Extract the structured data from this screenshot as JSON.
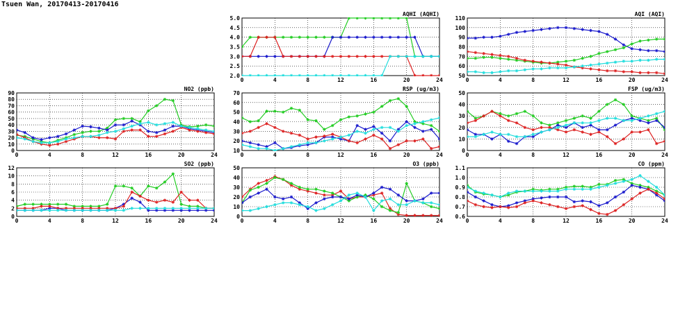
{
  "page": {
    "title": "Tsuen Wan, 20170413-20170416"
  },
  "colors": {
    "green": "#22cc22",
    "blue": "#1a1acc",
    "red": "#dd2222",
    "cyan": "#22dddd"
  },
  "chart_data": [
    {
      "type": "line",
      "title": "AQHI (AQHI)",
      "xlim": [
        0,
        24
      ],
      "ylim": [
        2.0,
        5.0
      ],
      "xticks": [
        "0",
        "4",
        "8",
        "12",
        "16",
        "20",
        "24"
      ],
      "yticks": [
        "2.0",
        "2.5",
        "3.0",
        "3.5",
        "4.0",
        "4.5",
        "5.0"
      ],
      "grid": true,
      "series": [
        {
          "color": "green",
          "values": [
            3.5,
            4,
            4,
            4,
            4,
            4,
            4,
            4,
            4,
            4,
            4,
            4,
            4,
            5,
            5,
            5,
            5,
            5,
            5,
            5,
            5,
            3,
            3,
            3,
            3
          ]
        },
        {
          "color": "blue",
          "values": [
            3,
            3,
            3,
            3,
            3,
            3,
            3,
            3,
            3,
            3,
            3,
            4,
            4,
            4,
            4,
            4,
            4,
            4,
            4,
            4,
            4,
            4,
            3,
            3,
            3
          ]
        },
        {
          "color": "red",
          "values": [
            3,
            3,
            4,
            4,
            4,
            3,
            3,
            3,
            3,
            3,
            3,
            3,
            3,
            3,
            3,
            3,
            3,
            3,
            3,
            3,
            3,
            2,
            2,
            2,
            2
          ]
        },
        {
          "color": "cyan",
          "values": [
            2,
            2,
            2,
            2,
            2,
            2,
            2,
            2,
            2,
            2,
            2,
            2,
            2,
            2,
            2,
            2,
            2,
            2,
            3,
            3,
            3,
            3,
            3,
            3,
            3
          ]
        }
      ]
    },
    {
      "type": "line",
      "title": "AQI (AQI)",
      "xlim": [
        0,
        24
      ],
      "ylim": [
        50,
        110
      ],
      "xticks": [
        "0",
        "4",
        "8",
        "12",
        "16",
        "20",
        "24"
      ],
      "yticks": [
        "50",
        "60",
        "70",
        "80",
        "90",
        "100",
        "110"
      ],
      "grid": true,
      "series": [
        {
          "color": "blue",
          "values": [
            89,
            89,
            90,
            90,
            91,
            93,
            95,
            96,
            97,
            98,
            99,
            100,
            100,
            99,
            98,
            97,
            96,
            93,
            88,
            82,
            78,
            77,
            76,
            76,
            75
          ]
        },
        {
          "color": "green",
          "values": [
            68,
            68,
            69,
            69,
            68,
            67,
            66,
            65,
            64,
            63,
            63,
            64,
            65,
            66,
            68,
            70,
            73,
            75,
            77,
            79,
            83,
            86,
            87,
            88,
            88
          ]
        },
        {
          "color": "red",
          "values": [
            75,
            74,
            73,
            72,
            71,
            70,
            68,
            66,
            65,
            64,
            63,
            62,
            61,
            59,
            58,
            57,
            56,
            55,
            55,
            54,
            54,
            53,
            53,
            53,
            52
          ]
        },
        {
          "color": "cyan",
          "values": [
            54,
            54,
            53,
            53,
            54,
            55,
            55,
            56,
            57,
            57,
            58,
            58,
            58,
            59,
            60,
            61,
            62,
            63,
            64,
            65,
            65,
            66,
            66,
            67,
            67
          ]
        }
      ]
    },
    {
      "type": "line",
      "title": "NO2 (ppb)",
      "xlim": [
        0,
        24
      ],
      "ylim": [
        0,
        90
      ],
      "xticks": [
        "0",
        "4",
        "8",
        "12",
        "16",
        "20",
        "24"
      ],
      "yticks": [
        "0",
        "10",
        "20",
        "30",
        "40",
        "50",
        "60",
        "70",
        "80",
        "90"
      ],
      "grid": true,
      "series": [
        {
          "color": "green",
          "values": [
            24,
            22,
            18,
            14,
            12,
            16,
            20,
            25,
            28,
            30,
            30,
            35,
            48,
            50,
            50,
            45,
            62,
            70,
            80,
            78,
            40,
            37,
            38,
            40,
            38
          ]
        },
        {
          "color": "blue",
          "values": [
            32,
            28,
            20,
            17,
            20,
            22,
            26,
            32,
            38,
            37,
            35,
            32,
            40,
            40,
            46,
            40,
            30,
            28,
            32,
            38,
            38,
            34,
            32,
            30,
            28
          ]
        },
        {
          "color": "red",
          "values": [
            25,
            20,
            14,
            10,
            8,
            10,
            14,
            18,
            22,
            22,
            20,
            20,
            18,
            30,
            32,
            32,
            22,
            22,
            26,
            30,
            36,
            32,
            30,
            28,
            26
          ]
        },
        {
          "color": "cyan",
          "values": [
            20,
            18,
            14,
            12,
            12,
            14,
            18,
            20,
            22,
            22,
            24,
            28,
            30,
            34,
            38,
            42,
            44,
            40,
            42,
            44,
            38,
            36,
            34,
            32,
            30
          ]
        }
      ]
    },
    {
      "type": "line",
      "title": "RSP (ug/m3)",
      "xlim": [
        0,
        24
      ],
      "ylim": [
        10,
        70
      ],
      "xticks": [
        "0",
        "4",
        "8",
        "12",
        "16",
        "20",
        "24"
      ],
      "yticks": [
        "10",
        "20",
        "30",
        "40",
        "50",
        "60",
        "70"
      ],
      "grid": true,
      "series": [
        {
          "color": "green",
          "values": [
            44,
            40,
            41,
            51,
            51,
            50,
            54,
            52,
            42,
            41,
            32,
            36,
            42,
            45,
            46,
            48,
            50,
            56,
            62,
            64,
            56,
            40,
            38,
            36,
            30
          ]
        },
        {
          "color": "blue",
          "values": [
            20,
            18,
            16,
            14,
            18,
            12,
            13,
            15,
            16,
            18,
            24,
            24,
            22,
            20,
            36,
            32,
            35,
            28,
            20,
            32,
            40,
            34,
            30,
            32,
            22
          ]
        },
        {
          "color": "red",
          "values": [
            28,
            30,
            34,
            38,
            34,
            30,
            28,
            26,
            22,
            24,
            25,
            27,
            24,
            20,
            18,
            22,
            26,
            22,
            12,
            16,
            20,
            20,
            22,
            12,
            14
          ]
        },
        {
          "color": "cyan",
          "values": [
            16,
            14,
            12,
            12,
            10,
            12,
            14,
            16,
            18,
            18,
            20,
            22,
            24,
            26,
            30,
            28,
            32,
            34,
            34,
            30,
            36,
            38,
            40,
            42,
            44
          ]
        }
      ]
    },
    {
      "type": "line",
      "title": "FSP (ug/m3)",
      "xlim": [
        0,
        24
      ],
      "ylim": [
        0,
        50
      ],
      "xticks": [
        "0",
        "4",
        "8",
        "12",
        "16",
        "20",
        "24"
      ],
      "yticks": [
        "0",
        "10",
        "20",
        "30",
        "40",
        "50"
      ],
      "grid": true,
      "series": [
        {
          "color": "green",
          "values": [
            34,
            28,
            30,
            34,
            32,
            30,
            32,
            34,
            30,
            24,
            22,
            24,
            26,
            28,
            30,
            28,
            34,
            40,
            44,
            40,
            30,
            28,
            26,
            28,
            18
          ]
        },
        {
          "color": "blue",
          "values": [
            18,
            14,
            14,
            10,
            14,
            8,
            6,
            12,
            12,
            16,
            18,
            22,
            20,
            24,
            20,
            22,
            18,
            18,
            22,
            26,
            28,
            26,
            24,
            26,
            20
          ]
        },
        {
          "color": "red",
          "values": [
            24,
            26,
            30,
            34,
            30,
            26,
            24,
            20,
            18,
            20,
            20,
            18,
            16,
            18,
            16,
            14,
            16,
            12,
            6,
            10,
            16,
            16,
            18,
            6,
            8
          ]
        },
        {
          "color": "cyan",
          "values": [
            12,
            12,
            14,
            16,
            14,
            14,
            12,
            12,
            14,
            16,
            18,
            20,
            22,
            24,
            24,
            24,
            26,
            28,
            28,
            26,
            26,
            28,
            30,
            32,
            34
          ]
        }
      ]
    },
    {
      "type": "line",
      "title": "SO2 (ppb)",
      "xlim": [
        0,
        24
      ],
      "ylim": [
        0,
        12
      ],
      "xticks": [
        "0",
        "4",
        "8",
        "12",
        "16",
        "20",
        "24"
      ],
      "yticks": [
        "0",
        "2",
        "4",
        "6",
        "8",
        "10",
        "12"
      ],
      "grid": true,
      "series": [
        {
          "color": "green",
          "values": [
            2.5,
            3,
            3,
            3,
            3,
            3,
            3,
            2.5,
            2.5,
            2.5,
            2.5,
            3,
            7.5,
            7.5,
            7,
            5,
            7.5,
            7,
            8.5,
            10.5,
            3,
            2.5,
            2.5,
            2,
            2
          ]
        },
        {
          "color": "blue",
          "values": [
            1.5,
            1.5,
            1.5,
            1.5,
            2,
            2,
            1.5,
            1.5,
            1.5,
            1.5,
            1.5,
            1.5,
            2,
            3,
            4.5,
            3.5,
            1.5,
            1.5,
            1.5,
            1.5,
            1.5,
            1.5,
            1.5,
            1.5,
            1.5
          ]
        },
        {
          "color": "red",
          "values": [
            2,
            2,
            2,
            2.5,
            2.5,
            2,
            2,
            2,
            2,
            2,
            2,
            2,
            2,
            2.5,
            6,
            5,
            4,
            3.5,
            4,
            3.5,
            6,
            4,
            4,
            2,
            2
          ]
        },
        {
          "color": "cyan",
          "values": [
            1.5,
            1.5,
            1.5,
            1.5,
            1.5,
            1.5,
            1.5,
            1.5,
            1.5,
            1.5,
            1.5,
            1.5,
            1.5,
            1.5,
            2,
            2,
            2,
            2,
            2,
            2,
            2,
            2,
            2,
            2,
            2
          ]
        }
      ]
    },
    {
      "type": "line",
      "title": "O3 (ppb)",
      "xlim": [
        0,
        24
      ],
      "ylim": [
        0,
        50
      ],
      "xticks": [
        "0",
        "4",
        "8",
        "12",
        "16",
        "20",
        "24"
      ],
      "yticks": [
        "0",
        "10",
        "20",
        "30",
        "40",
        "50"
      ],
      "grid": true,
      "series": [
        {
          "color": "red",
          "values": [
            20,
            28,
            34,
            37,
            41,
            38,
            32,
            28,
            26,
            24,
            22,
            22,
            26,
            18,
            20,
            20,
            22,
            24,
            8,
            2,
            1,
            1,
            1,
            1,
            1
          ]
        },
        {
          "color": "green",
          "values": [
            14,
            27,
            30,
            34,
            40,
            38,
            34,
            30,
            28,
            28,
            26,
            24,
            20,
            16,
            20,
            22,
            18,
            10,
            6,
            4,
            34,
            16,
            14,
            10,
            8
          ]
        },
        {
          "color": "blue",
          "values": [
            14,
            20,
            24,
            28,
            20,
            18,
            20,
            14,
            8,
            14,
            18,
            20,
            20,
            18,
            22,
            20,
            24,
            30,
            28,
            22,
            16,
            16,
            18,
            24,
            24
          ]
        },
        {
          "color": "cyan",
          "values": [
            6,
            6,
            8,
            10,
            12,
            14,
            14,
            12,
            10,
            6,
            8,
            12,
            16,
            22,
            24,
            20,
            6,
            16,
            18,
            12,
            12,
            16,
            14,
            14,
            12
          ]
        }
      ]
    },
    {
      "type": "line",
      "title": "CO (ppm)",
      "xlim": [
        0,
        24
      ],
      "ylim": [
        0.6,
        1.1
      ],
      "xticks": [
        "0",
        "4",
        "8",
        "12",
        "16",
        "20",
        "24"
      ],
      "yticks": [
        "0.6",
        "0.7",
        "0.8",
        "0.9",
        "1.0",
        "1.1"
      ],
      "grid": true,
      "series": [
        {
          "color": "green",
          "values": [
            0.92,
            0.85,
            0.83,
            0.82,
            0.8,
            0.82,
            0.85,
            0.86,
            0.88,
            0.87,
            0.88,
            0.88,
            0.9,
            0.91,
            0.91,
            0.9,
            0.93,
            0.93,
            0.97,
            0.98,
            0.94,
            0.92,
            0.9,
            0.86,
            0.82
          ]
        },
        {
          "color": "blue",
          "values": [
            0.85,
            0.8,
            0.76,
            0.72,
            0.7,
            0.71,
            0.74,
            0.76,
            0.78,
            0.79,
            0.8,
            0.8,
            0.8,
            0.75,
            0.76,
            0.75,
            0.71,
            0.74,
            0.8,
            0.85,
            0.92,
            0.9,
            0.88,
            0.82,
            0.76
          ]
        },
        {
          "color": "red",
          "values": [
            0.76,
            0.72,
            0.7,
            0.69,
            0.7,
            0.69,
            0.7,
            0.74,
            0.76,
            0.74,
            0.72,
            0.7,
            0.68,
            0.7,
            0.71,
            0.67,
            0.63,
            0.62,
            0.66,
            0.72,
            0.78,
            0.84,
            0.88,
            0.84,
            0.78
          ]
        },
        {
          "color": "cyan",
          "values": [
            0.9,
            0.86,
            0.84,
            0.82,
            0.8,
            0.84,
            0.86,
            0.86,
            0.86,
            0.86,
            0.86,
            0.86,
            0.88,
            0.88,
            0.88,
            0.88,
            0.9,
            0.92,
            0.94,
            0.96,
            0.98,
            1.02,
            0.96,
            0.9,
            0.82
          ]
        }
      ]
    }
  ]
}
